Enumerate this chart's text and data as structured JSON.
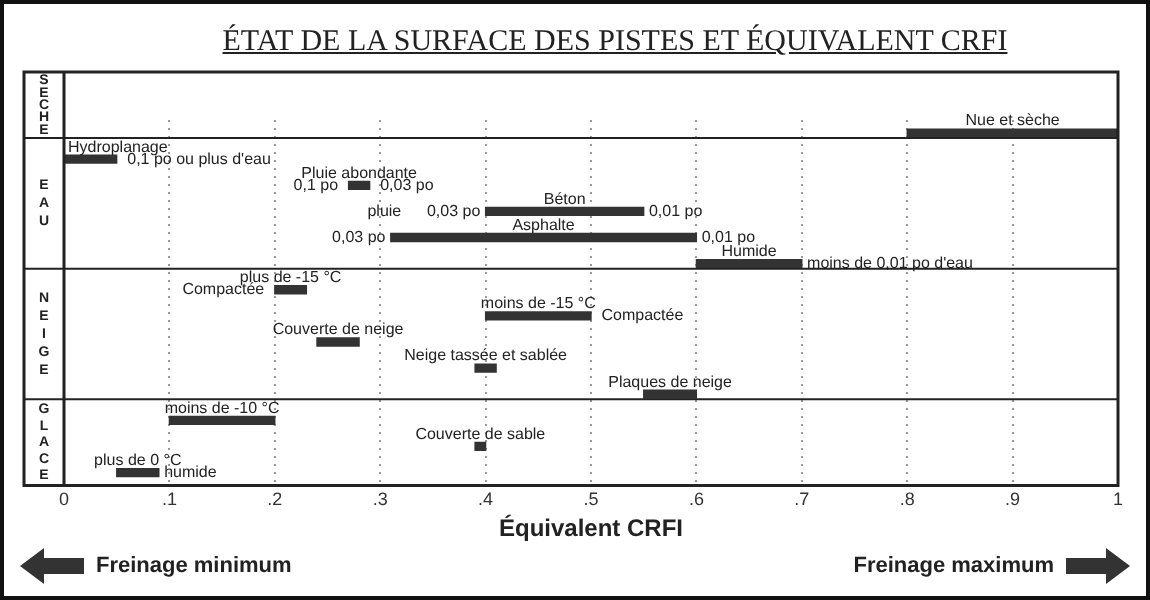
{
  "chart_data": {
    "type": "bar",
    "orientation": "horizontal",
    "title": "ÉTAT DE LA SURFACE DES PISTES ET ÉQUIVALENT CRFI",
    "xlabel": "Équivalent CRFI",
    "categories": [
      "Nue et sèche",
      "Hydroplanage",
      "Pluie abondante",
      "Béton",
      "Asphalte",
      "Humide",
      "plus de -15 °C",
      "moins de -15 °C",
      "Couverte de neige",
      "Neige tassée et sablée",
      "Plaques de neige",
      "moins de -10 °C",
      "Couverte de sable",
      "plus de 0 °C"
    ],
    "base": [
      0.8,
      0,
      0.27,
      0.4,
      0.31,
      0.6,
      0.2,
      0.4,
      0.24,
      0.39,
      0.55,
      0.1,
      0.39,
      0.05
    ],
    "values": [
      0.2,
      0.05,
      0.02,
      0.15,
      0.29,
      0.1,
      0.03,
      0.1,
      0.04,
      0.02,
      0.05,
      0.1,
      0.01,
      0.04
    ],
    "color": "#333333",
    "xlim": [
      0,
      1
    ],
    "xticks": [
      0,
      {
        "value": 0.1,
        "label": ".1"
      },
      {
        "value": 0.2,
        "label": ".2"
      },
      {
        "value": 0.3,
        "label": ".3"
      },
      {
        "value": 0.4,
        "label": ".4"
      },
      {
        "value": 0.5,
        "label": ".5"
      },
      {
        "value": 0.6,
        "label": ".6"
      },
      {
        "value": 0.7,
        "label": ".7"
      },
      {
        "value": 0.8,
        "label": ".8"
      },
      {
        "value": 0.9,
        "label": ".9"
      },
      1
    ],
    "grid": "x",
    "annotations": [
      "SECHE",
      "EAU",
      "NEIGE",
      "GLACE",
      "Freinage minimum",
      "Freinage maximum",
      "0,1 po ou plus d'eau",
      "0,1 po",
      "0,03 po",
      "pluie",
      "0,03 po",
      "0,01 po",
      "0,03 po",
      "0,01 po",
      "moins de 0,01 po d'eau",
      "Compactée",
      "Compactée",
      "humide"
    ]
  }
}
